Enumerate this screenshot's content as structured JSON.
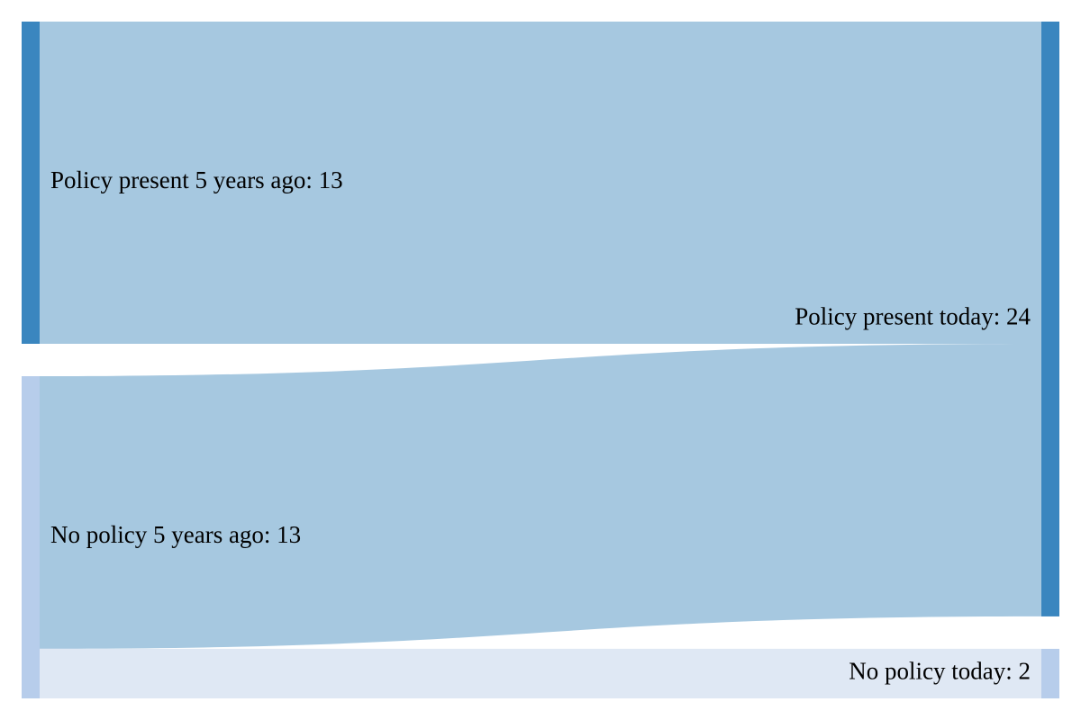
{
  "chart_data": {
    "type": "sankey",
    "nodes": [
      {
        "id": "src_policy",
        "label": "Policy present 5 years ago: 13",
        "value": 13,
        "column": "left",
        "color": "#3a86bf"
      },
      {
        "id": "src_nopolicy",
        "label": "No policy 5 years ago: 13",
        "value": 13,
        "column": "left",
        "color": "#b7cdeb"
      },
      {
        "id": "dst_policy",
        "label": "Policy present today: 24",
        "value": 24,
        "column": "right",
        "color": "#3a86bf"
      },
      {
        "id": "dst_nopolicy",
        "label": "No policy today: 2",
        "value": 2,
        "column": "right",
        "color": "#b7cdeb"
      }
    ],
    "links": [
      {
        "source": "src_policy",
        "target": "dst_policy",
        "value": 13,
        "color": "#a6c8e0"
      },
      {
        "source": "src_nopolicy",
        "target": "dst_policy",
        "value": 11,
        "color": "#a6c8e0"
      },
      {
        "source": "src_nopolicy",
        "target": "dst_nopolicy",
        "value": 2,
        "color": "#dfe8f4"
      }
    ]
  }
}
